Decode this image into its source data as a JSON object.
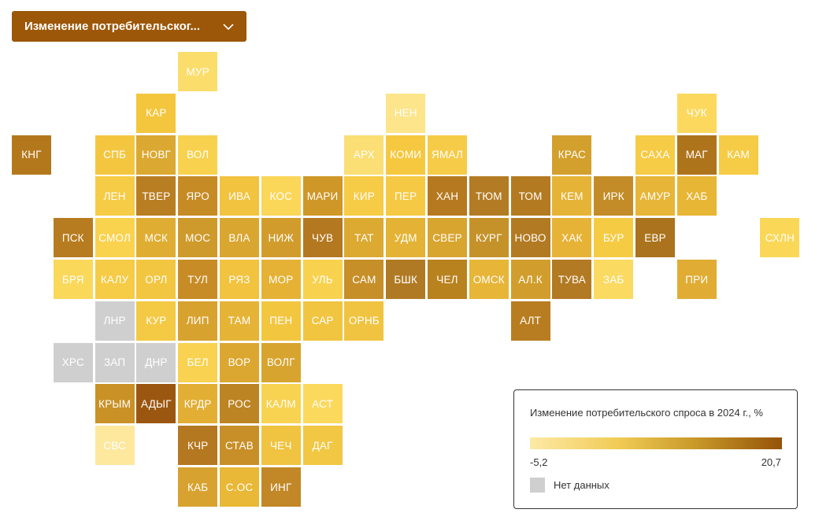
{
  "dropdown": {
    "label": "Изменение потребительског...",
    "icon": "chevron-down-icon"
  },
  "legend": {
    "title": "Изменение потребительского спроса в 2024 г., %",
    "min": "-5,2",
    "max": "20,7",
    "no_data": "Нет данных",
    "no_data_color": "#cfcfcf",
    "gradient": [
      "#fde9a6",
      "#f1cb55",
      "#c99a2a",
      "#955308"
    ]
  },
  "tiles": [
    {
      "label": "МУР",
      "col": 4,
      "row": 0,
      "color": "#fbdd6b"
    },
    {
      "label": "КАР",
      "col": 3,
      "row": 1,
      "color": "#f4c63e"
    },
    {
      "label": "НЕН",
      "col": 9,
      "row": 1,
      "color": "#fce58a"
    },
    {
      "label": "ЧУК",
      "col": 16,
      "row": 1,
      "color": "#fcd85e"
    },
    {
      "label": "КНГ",
      "col": 0,
      "row": 2,
      "color": "#b3781c"
    },
    {
      "label": "СПБ",
      "col": 2,
      "row": 2,
      "color": "#f4c640"
    },
    {
      "label": "НОВГ",
      "col": 3,
      "row": 2,
      "color": "#dba831"
    },
    {
      "label": "ВОЛ",
      "col": 4,
      "row": 2,
      "color": "#f8d24e"
    },
    {
      "label": "АРХ",
      "col": 8,
      "row": 2,
      "color": "#fbde74"
    },
    {
      "label": "КОМИ",
      "col": 9,
      "row": 2,
      "color": "#f5c840"
    },
    {
      "label": "ЯМАЛ",
      "col": 10,
      "row": 2,
      "color": "#f6cb47"
    },
    {
      "label": "КРАС",
      "col": 13,
      "row": 2,
      "color": "#d3a02e"
    },
    {
      "label": "САХА",
      "col": 15,
      "row": 2,
      "color": "#f6cb45"
    },
    {
      "label": "МАГ",
      "col": 16,
      "row": 2,
      "color": "#ae741c"
    },
    {
      "label": "КАМ",
      "col": 17,
      "row": 2,
      "color": "#f6cb46"
    },
    {
      "label": "ЛЕН",
      "col": 2,
      "row": 3,
      "color": "#f6cb45"
    },
    {
      "label": "ТВЕР",
      "col": 3,
      "row": 3,
      "color": "#b97d22"
    },
    {
      "label": "ЯРО",
      "col": 4,
      "row": 3,
      "color": "#c68b25"
    },
    {
      "label": "ИВА",
      "col": 5,
      "row": 3,
      "color": "#f2c33f"
    },
    {
      "label": "КОС",
      "col": 6,
      "row": 3,
      "color": "#fad659"
    },
    {
      "label": "МАРИ",
      "col": 7,
      "row": 3,
      "color": "#cf9728"
    },
    {
      "label": "КИР",
      "col": 8,
      "row": 3,
      "color": "#f6cb46"
    },
    {
      "label": "ПЕР",
      "col": 9,
      "row": 3,
      "color": "#f5c943"
    },
    {
      "label": "ХАН",
      "col": 10,
      "row": 3,
      "color": "#b6791f"
    },
    {
      "label": "ТЮМ",
      "col": 11,
      "row": 3,
      "color": "#b37b23"
    },
    {
      "label": "ТОМ",
      "col": 12,
      "row": 3,
      "color": "#b47a21"
    },
    {
      "label": "КЕМ",
      "col": 13,
      "row": 3,
      "color": "#e5b336"
    },
    {
      "label": "ИРК",
      "col": 14,
      "row": 3,
      "color": "#c38c28"
    },
    {
      "label": "АМУР",
      "col": 15,
      "row": 3,
      "color": "#e7b537"
    },
    {
      "label": "ХАБ",
      "col": 16,
      "row": 3,
      "color": "#e8b635"
    },
    {
      "label": "ПСК",
      "col": 1,
      "row": 4,
      "color": "#b77c1f"
    },
    {
      "label": "СМОЛ",
      "col": 2,
      "row": 4,
      "color": "#f9d24e"
    },
    {
      "label": "МСК",
      "col": 3,
      "row": 4,
      "color": "#e0ad33"
    },
    {
      "label": "МОС",
      "col": 4,
      "row": 4,
      "color": "#cf9a2c"
    },
    {
      "label": "ВЛА",
      "col": 5,
      "row": 4,
      "color": "#d9a630"
    },
    {
      "label": "НИЖ",
      "col": 6,
      "row": 4,
      "color": "#d29c2d"
    },
    {
      "label": "ЧУВ",
      "col": 7,
      "row": 4,
      "color": "#b37820"
    },
    {
      "label": "ТАТ",
      "col": 8,
      "row": 4,
      "color": "#dca931"
    },
    {
      "label": "УДМ",
      "col": 9,
      "row": 4,
      "color": "#e4b335"
    },
    {
      "label": "СВЕР",
      "col": 10,
      "row": 4,
      "color": "#d8a52f"
    },
    {
      "label": "КУРГ",
      "col": 11,
      "row": 4,
      "color": "#c5922a"
    },
    {
      "label": "НОВО",
      "col": 12,
      "row": 4,
      "color": "#b27a22"
    },
    {
      "label": "ХАК",
      "col": 13,
      "row": 4,
      "color": "#e7b336"
    },
    {
      "label": "БУР",
      "col": 14,
      "row": 4,
      "color": "#f6cb44"
    },
    {
      "label": "ЕВР",
      "col": 15,
      "row": 4,
      "color": "#ab731d"
    },
    {
      "label": "СХЛН",
      "col": 18,
      "row": 4,
      "color": "#fad757"
    },
    {
      "label": "БРЯ",
      "col": 1,
      "row": 5,
      "color": "#fad85a"
    },
    {
      "label": "КАЛУ",
      "col": 2,
      "row": 5,
      "color": "#f6cb45"
    },
    {
      "label": "ОРЛ",
      "col": 3,
      "row": 5,
      "color": "#f2c640"
    },
    {
      "label": "ТУЛ",
      "col": 4,
      "row": 5,
      "color": "#c88c26"
    },
    {
      "label": "РЯЗ",
      "col": 5,
      "row": 5,
      "color": "#f1c33e"
    },
    {
      "label": "МОР",
      "col": 6,
      "row": 5,
      "color": "#e5b235"
    },
    {
      "label": "УЛЬ",
      "col": 7,
      "row": 5,
      "color": "#f8d24f"
    },
    {
      "label": "САМ",
      "col": 8,
      "row": 5,
      "color": "#c68f28"
    },
    {
      "label": "БШК",
      "col": 9,
      "row": 5,
      "color": "#b07a24"
    },
    {
      "label": "ЧЕЛ",
      "col": 10,
      "row": 5,
      "color": "#b8821f"
    },
    {
      "label": "ОМСК",
      "col": 11,
      "row": 5,
      "color": "#e7b537"
    },
    {
      "label": "АЛ.К",
      "col": 12,
      "row": 5,
      "color": "#d19e2d"
    },
    {
      "label": "ТУВА",
      "col": 13,
      "row": 5,
      "color": "#b27a23"
    },
    {
      "label": "ЗАБ",
      "col": 14,
      "row": 5,
      "color": "#fbda61"
    },
    {
      "label": "ПРИ",
      "col": 16,
      "row": 5,
      "color": "#e0ac33"
    },
    {
      "label": "ЛНР",
      "col": 2,
      "row": 6,
      "color": "#cfcfcf"
    },
    {
      "label": "КУР",
      "col": 3,
      "row": 6,
      "color": "#f4c943"
    },
    {
      "label": "ЛИП",
      "col": 4,
      "row": 6,
      "color": "#d8a22f"
    },
    {
      "label": "ТАМ",
      "col": 5,
      "row": 6,
      "color": "#e5b436"
    },
    {
      "label": "ПЕН",
      "col": 6,
      "row": 6,
      "color": "#f3c640"
    },
    {
      "label": "САР",
      "col": 7,
      "row": 6,
      "color": "#f1c540"
    },
    {
      "label": "ОРНБ",
      "col": 8,
      "row": 6,
      "color": "#f0c440"
    },
    {
      "label": "АЛТ",
      "col": 12,
      "row": 6,
      "color": "#b87d20"
    },
    {
      "label": "ХРС",
      "col": 1,
      "row": 7,
      "color": "#cfcfcf"
    },
    {
      "label": "ЗАП",
      "col": 2,
      "row": 7,
      "color": "#cfcfcf"
    },
    {
      "label": "ДНР",
      "col": 3,
      "row": 7,
      "color": "#cfcfcf"
    },
    {
      "label": "БЕЛ",
      "col": 4,
      "row": 7,
      "color": "#f8d250"
    },
    {
      "label": "ВОР",
      "col": 5,
      "row": 7,
      "color": "#dba730"
    },
    {
      "label": "ВОЛГ",
      "col": 6,
      "row": 7,
      "color": "#d7a42f"
    },
    {
      "label": "КРЫМ",
      "col": 2,
      "row": 8,
      "color": "#c99126"
    },
    {
      "label": "АДЫГ",
      "col": 3,
      "row": 8,
      "color": "#9b5710"
    },
    {
      "label": "КРДР",
      "col": 4,
      "row": 8,
      "color": "#e2af34"
    },
    {
      "label": "РОС",
      "col": 5,
      "row": 8,
      "color": "#bd8423"
    },
    {
      "label": "КАЛМ",
      "col": 6,
      "row": 8,
      "color": "#f8d251"
    },
    {
      "label": "АСТ",
      "col": 7,
      "row": 8,
      "color": "#fbd95c"
    },
    {
      "label": "СВС",
      "col": 2,
      "row": 9,
      "color": "#fde89e"
    },
    {
      "label": "КЧР",
      "col": 4,
      "row": 9,
      "color": "#b47820"
    },
    {
      "label": "СТАВ",
      "col": 5,
      "row": 9,
      "color": "#c88f28"
    },
    {
      "label": "ЧЕЧ",
      "col": 6,
      "row": 9,
      "color": "#f0c340"
    },
    {
      "label": "ДАГ",
      "col": 7,
      "row": 9,
      "color": "#f1c743"
    },
    {
      "label": "КАБ",
      "col": 4,
      "row": 10,
      "color": "#d7a22f"
    },
    {
      "label": "С.ОС",
      "col": 5,
      "row": 10,
      "color": "#e8b836"
    },
    {
      "label": "ИНГ",
      "col": 6,
      "row": 10,
      "color": "#c28726"
    }
  ]
}
